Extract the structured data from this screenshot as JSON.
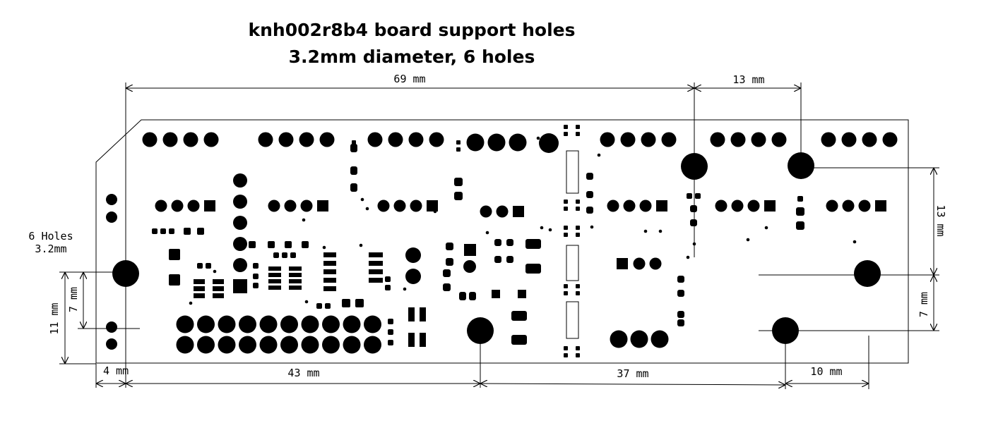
{
  "title": {
    "line1": "knh002r8b4 board support holes",
    "line2": "3.2mm diameter, 6 holes"
  },
  "dimensions": {
    "width_total": "69 mm",
    "hole_spacing_top": "13 mm",
    "right_vertical": "13 mm",
    "right_small_vertical": "7 mm",
    "left_vertical_outer": "11 mm",
    "left_vertical_inner": "7 mm",
    "bottom_left": "4 mm",
    "bottom_mid": "43 mm",
    "bottom_right_mid": "37 mm",
    "bottom_right": "10 mm"
  },
  "hole_note": {
    "line1": "6 Holes",
    "line2": "3.2mm"
  }
}
